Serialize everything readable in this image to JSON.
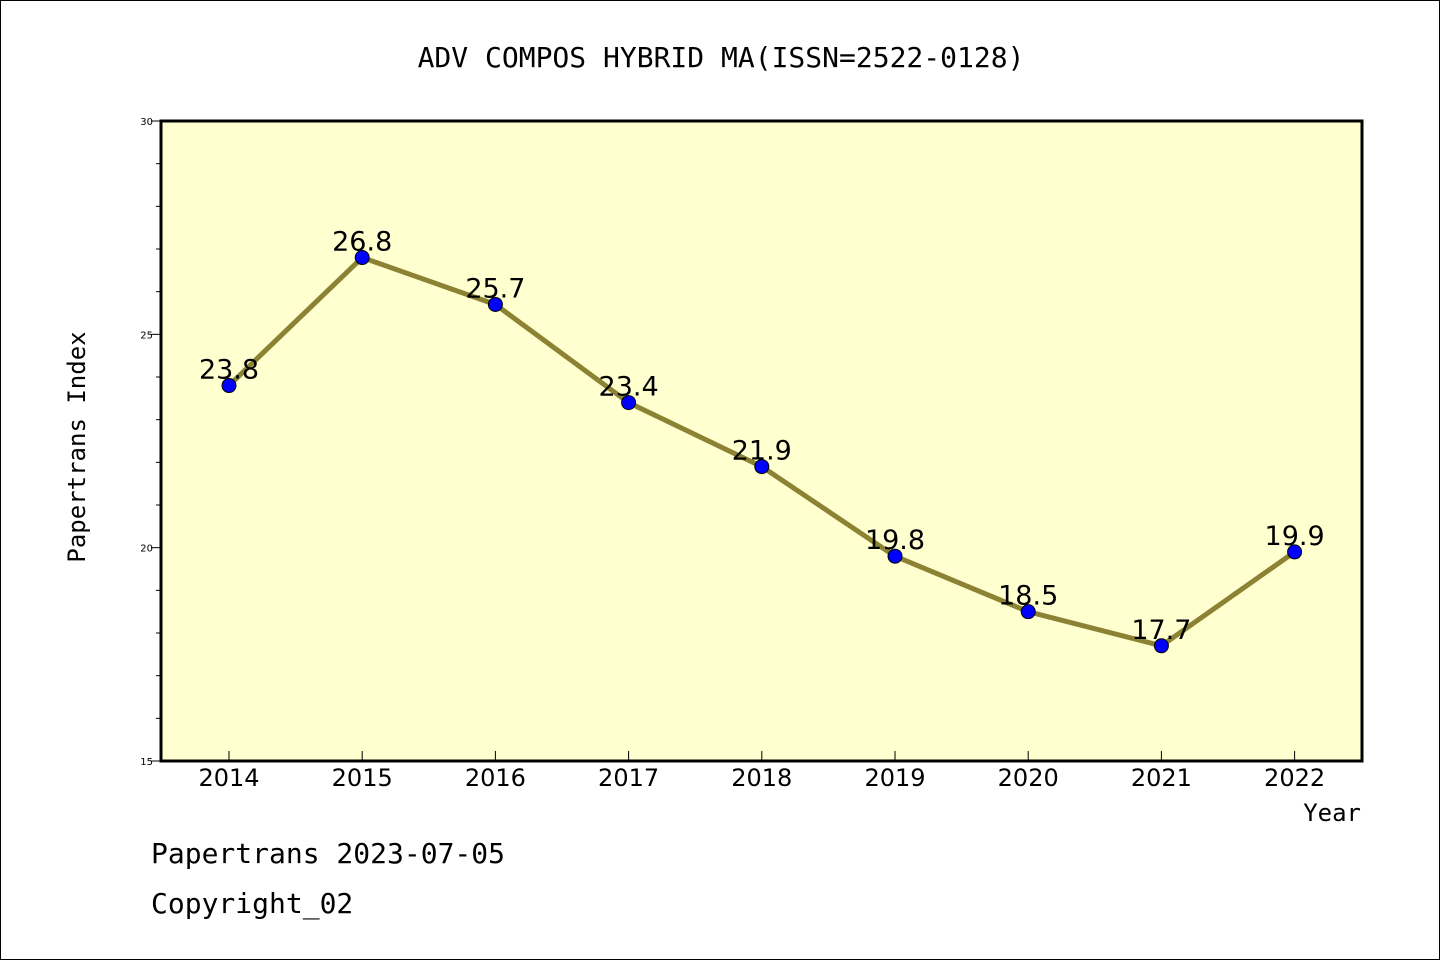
{
  "chart_data": {
    "type": "line",
    "title": "ADV COMPOS HYBRID MA(ISSN=2522-0128)",
    "xlabel": "Year",
    "ylabel": "Papertrans Index",
    "categories": [
      "2014",
      "2015",
      "2016",
      "2017",
      "2018",
      "2019",
      "2020",
      "2021",
      "2022"
    ],
    "series": [
      {
        "values": [
          23.8,
          26.8,
          25.7,
          23.4,
          21.9,
          19.8,
          18.5,
          17.7,
          19.9
        ],
        "data_labels": [
          "23.8",
          "26.8",
          "25.7",
          "23.4",
          "21.9",
          "19.8",
          "18.5",
          "17.7",
          "19.9"
        ]
      }
    ],
    "ylim": [
      15,
      30
    ],
    "yticks": [
      "15",
      "20",
      "25",
      "30"
    ],
    "grid": false,
    "colors": {
      "plot_background": "#FFFFD0",
      "line": "#8B8233",
      "marker": "#0000FF"
    }
  },
  "footer": {
    "line1": "Papertrans 2023-07-05",
    "line2": "Copyright_02"
  }
}
